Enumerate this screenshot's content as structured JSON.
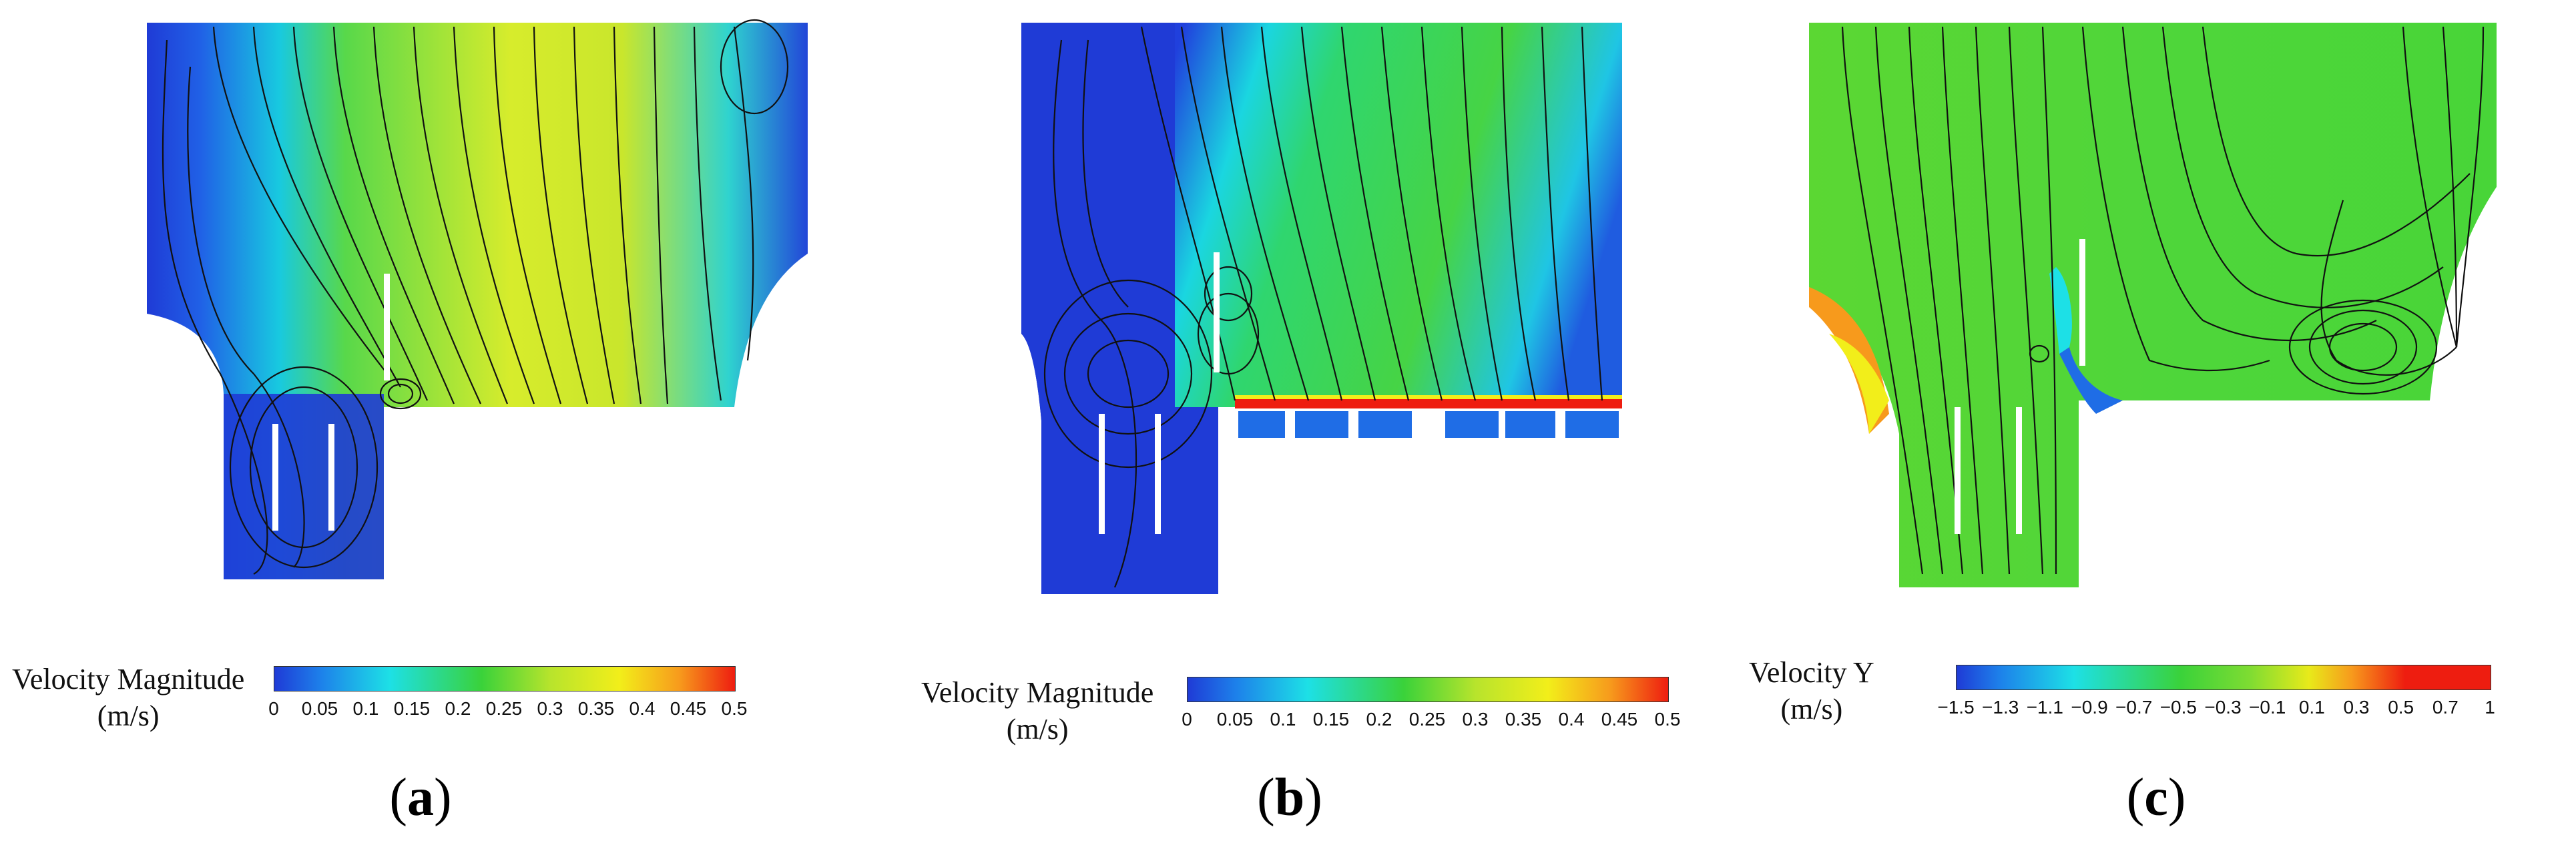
{
  "panels": [
    {
      "id": "a",
      "caption_letter": "a",
      "legend_title_line1": "Velocity Magnitude",
      "legend_title_line2": "(m/s)",
      "ticks": [
        "0",
        "0.05",
        "0.1",
        "0.15",
        "0.2",
        "0.25",
        "0.3",
        "0.35",
        "0.4",
        "0.45",
        "0.5"
      ],
      "range": [
        0,
        0.5
      ]
    },
    {
      "id": "b",
      "caption_letter": "b",
      "legend_title_line1": "Velocity Magnitude",
      "legend_title_line2": "(m/s)",
      "ticks": [
        "0",
        "0.05",
        "0.1",
        "0.15",
        "0.2",
        "0.25",
        "0.3",
        "0.35",
        "0.4",
        "0.45",
        "0.5"
      ],
      "range": [
        0,
        0.5
      ]
    },
    {
      "id": "c",
      "caption_letter": "c",
      "legend_title_line1": "Velocity Y",
      "legend_title_line2": "(m/s)",
      "ticks": [
        "−1.5",
        "−1.3",
        "−1.1",
        "−0.9",
        "−0.7",
        "−0.5",
        "−0.3",
        "−0.1",
        "0.1",
        "0.3",
        "0.5",
        "0.7",
        "1"
      ],
      "range": [
        -1.5,
        1
      ]
    }
  ],
  "colors": {
    "low": "#1f3bd6",
    "cyan": "#1de0e6",
    "green": "#3ad23a",
    "yellow": "#f2ee1a",
    "orange": "#f79a1c",
    "high": "#ee1d10",
    "streamline": "#111111"
  }
}
